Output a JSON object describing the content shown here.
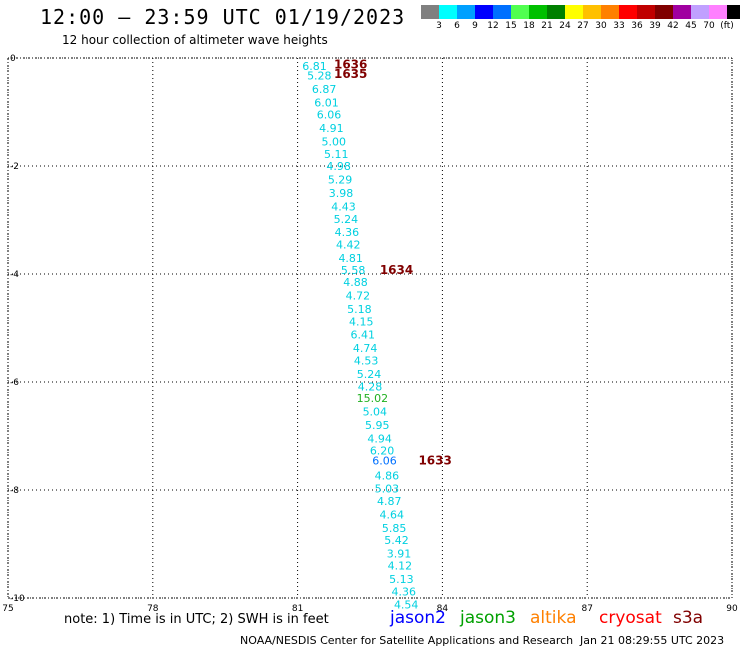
{
  "header": {
    "title": "12:00 – 23:59 UTC 01/19/2023",
    "subtitle": "12 hour collection of altimeter wave heights"
  },
  "colorbar": {
    "unit": "(ft)",
    "colors": [
      "#808080",
      "#00ffff",
      "#00a0ff",
      "#0000ff",
      "#0070ff",
      "#50ff50",
      "#00c000",
      "#008000",
      "#ffff00",
      "#ffc000",
      "#ff8000",
      "#ff0000",
      "#c00000",
      "#800000",
      "#a000a0",
      "#c0a0ff",
      "#ff80ff",
      "#000000"
    ],
    "ticks": [
      "3",
      "6",
      "9",
      "12",
      "15",
      "18",
      "21",
      "24",
      "27",
      "30",
      "33",
      "36",
      "39",
      "42",
      "45",
      "70"
    ]
  },
  "map_data": {
    "lon_range": [
      75,
      90
    ],
    "lat_range": [
      -10,
      0
    ],
    "x_ticks": [
      75,
      78,
      81,
      84,
      87,
      90
    ],
    "y_ticks": [
      0,
      -2,
      -4,
      -6,
      -8,
      -10
    ],
    "grid": "dotted",
    "observations": [
      {
        "lon": 81.35,
        "lat": -0.15,
        "value": "6.81",
        "color": "#00d0e0"
      },
      {
        "lon": 81.45,
        "lat": -0.32,
        "value": "5.28",
        "color": "#00d0e0"
      },
      {
        "lon": 81.55,
        "lat": -0.57,
        "value": "6.87",
        "color": "#00d0e0"
      },
      {
        "lon": 81.6,
        "lat": -0.82,
        "value": "6.01",
        "color": "#00d0e0"
      },
      {
        "lon": 81.65,
        "lat": -1.05,
        "value": "6.06",
        "color": "#00d0e0"
      },
      {
        "lon": 81.7,
        "lat": -1.3,
        "value": "4.91",
        "color": "#00d0e0"
      },
      {
        "lon": 81.75,
        "lat": -1.55,
        "value": "5.00",
        "color": "#00d0e0"
      },
      {
        "lon": 81.8,
        "lat": -1.78,
        "value": "5.11",
        "color": "#00d0e0"
      },
      {
        "lon": 81.85,
        "lat": -2.0,
        "value": "4.98",
        "color": "#00d0e0"
      },
      {
        "lon": 81.88,
        "lat": -2.25,
        "value": "5.29",
        "color": "#00d0e0"
      },
      {
        "lon": 81.9,
        "lat": -2.5,
        "value": "3.98",
        "color": "#00d0e0"
      },
      {
        "lon": 81.95,
        "lat": -2.75,
        "value": "4.43",
        "color": "#00d0e0"
      },
      {
        "lon": 82.0,
        "lat": -2.98,
        "value": "5.24",
        "color": "#00d0e0"
      },
      {
        "lon": 82.02,
        "lat": -3.22,
        "value": "4.36",
        "color": "#00d0e0"
      },
      {
        "lon": 82.05,
        "lat": -3.45,
        "value": "4.42",
        "color": "#00d0e0"
      },
      {
        "lon": 82.1,
        "lat": -3.7,
        "value": "4.81",
        "color": "#00d0e0"
      },
      {
        "lon": 82.15,
        "lat": -3.93,
        "value": "5.58",
        "color": "#00d0e0"
      },
      {
        "lon": 82.2,
        "lat": -4.15,
        "value": "4.88",
        "color": "#00d0e0"
      },
      {
        "lon": 82.25,
        "lat": -4.4,
        "value": "4.72",
        "color": "#00d0e0"
      },
      {
        "lon": 82.28,
        "lat": -4.65,
        "value": "5.18",
        "color": "#00d0e0"
      },
      {
        "lon": 82.32,
        "lat": -4.88,
        "value": "4.15",
        "color": "#00d0e0"
      },
      {
        "lon": 82.35,
        "lat": -5.12,
        "value": "6.41",
        "color": "#00d0e0"
      },
      {
        "lon": 82.4,
        "lat": -5.37,
        "value": "4.74",
        "color": "#00d0e0"
      },
      {
        "lon": 82.42,
        "lat": -5.6,
        "value": "4.53",
        "color": "#00d0e0"
      },
      {
        "lon": 82.48,
        "lat": -5.85,
        "value": "5.24",
        "color": "#00d0e0"
      },
      {
        "lon": 82.5,
        "lat": -6.08,
        "value": "4.28",
        "color": "#00d0e0"
      },
      {
        "lon": 82.55,
        "lat": -6.3,
        "value": "15.02",
        "color": "#20b020"
      },
      {
        "lon": 82.6,
        "lat": -6.55,
        "value": "5.04",
        "color": "#00d0e0"
      },
      {
        "lon": 82.65,
        "lat": -6.8,
        "value": "5.95",
        "color": "#00d0e0"
      },
      {
        "lon": 82.7,
        "lat": -7.05,
        "value": "4.94",
        "color": "#00d0e0"
      },
      {
        "lon": 82.75,
        "lat": -7.27,
        "value": "6.20",
        "color": "#00d0e0"
      },
      {
        "lon": 82.8,
        "lat": -7.45,
        "value": "6.06",
        "color": "#0070ff"
      },
      {
        "lon": 82.85,
        "lat": -7.73,
        "value": "4.86",
        "color": "#00d0e0"
      },
      {
        "lon": 82.85,
        "lat": -7.97,
        "value": "5.03",
        "color": "#00d0e0"
      },
      {
        "lon": 82.9,
        "lat": -8.2,
        "value": "4.87",
        "color": "#00d0e0"
      },
      {
        "lon": 82.95,
        "lat": -8.45,
        "value": "4.64",
        "color": "#00d0e0"
      },
      {
        "lon": 83.0,
        "lat": -8.7,
        "value": "5.85",
        "color": "#00d0e0"
      },
      {
        "lon": 83.05,
        "lat": -8.93,
        "value": "5.42",
        "color": "#00d0e0"
      },
      {
        "lon": 83.1,
        "lat": -9.18,
        "value": "3.91",
        "color": "#00d0e0"
      },
      {
        "lon": 83.12,
        "lat": -9.4,
        "value": "4.12",
        "color": "#00d0e0"
      },
      {
        "lon": 83.15,
        "lat": -9.65,
        "value": "5.13",
        "color": "#00d0e0"
      },
      {
        "lon": 83.2,
        "lat": -9.88,
        "value": "4.36",
        "color": "#00d0e0"
      },
      {
        "lon": 83.25,
        "lat": -10.12,
        "value": "4.54",
        "color": "#00d0e0"
      }
    ],
    "time_labels": [
      {
        "lon": 82.1,
        "lat": -0.12,
        "value": "1636",
        "color": "#800000"
      },
      {
        "lon": 82.1,
        "lat": -0.3,
        "value": "1635",
        "color": "#800000"
      },
      {
        "lon": 83.05,
        "lat": -3.93,
        "value": "1634",
        "color": "#800000"
      },
      {
        "lon": 83.85,
        "lat": -7.45,
        "value": "1633",
        "color": "#800000"
      }
    ]
  },
  "footer": {
    "note": "note:  1) Time is in UTC; 2) SWH is in feet",
    "legend": [
      {
        "name": "jason2",
        "color": "#0000ff"
      },
      {
        "name": "jason3",
        "color": "#00a000"
      },
      {
        "name": "altika",
        "color": "#ff8000"
      },
      {
        "name": "cryosat",
        "color": "#ff0000"
      },
      {
        "name": "s3a",
        "color": "#800000"
      }
    ],
    "credit": "NOAA/NESDIS Center for Satellite Applications and Research",
    "timestamp": "Jan 21 08:29:55 UTC 2023"
  }
}
